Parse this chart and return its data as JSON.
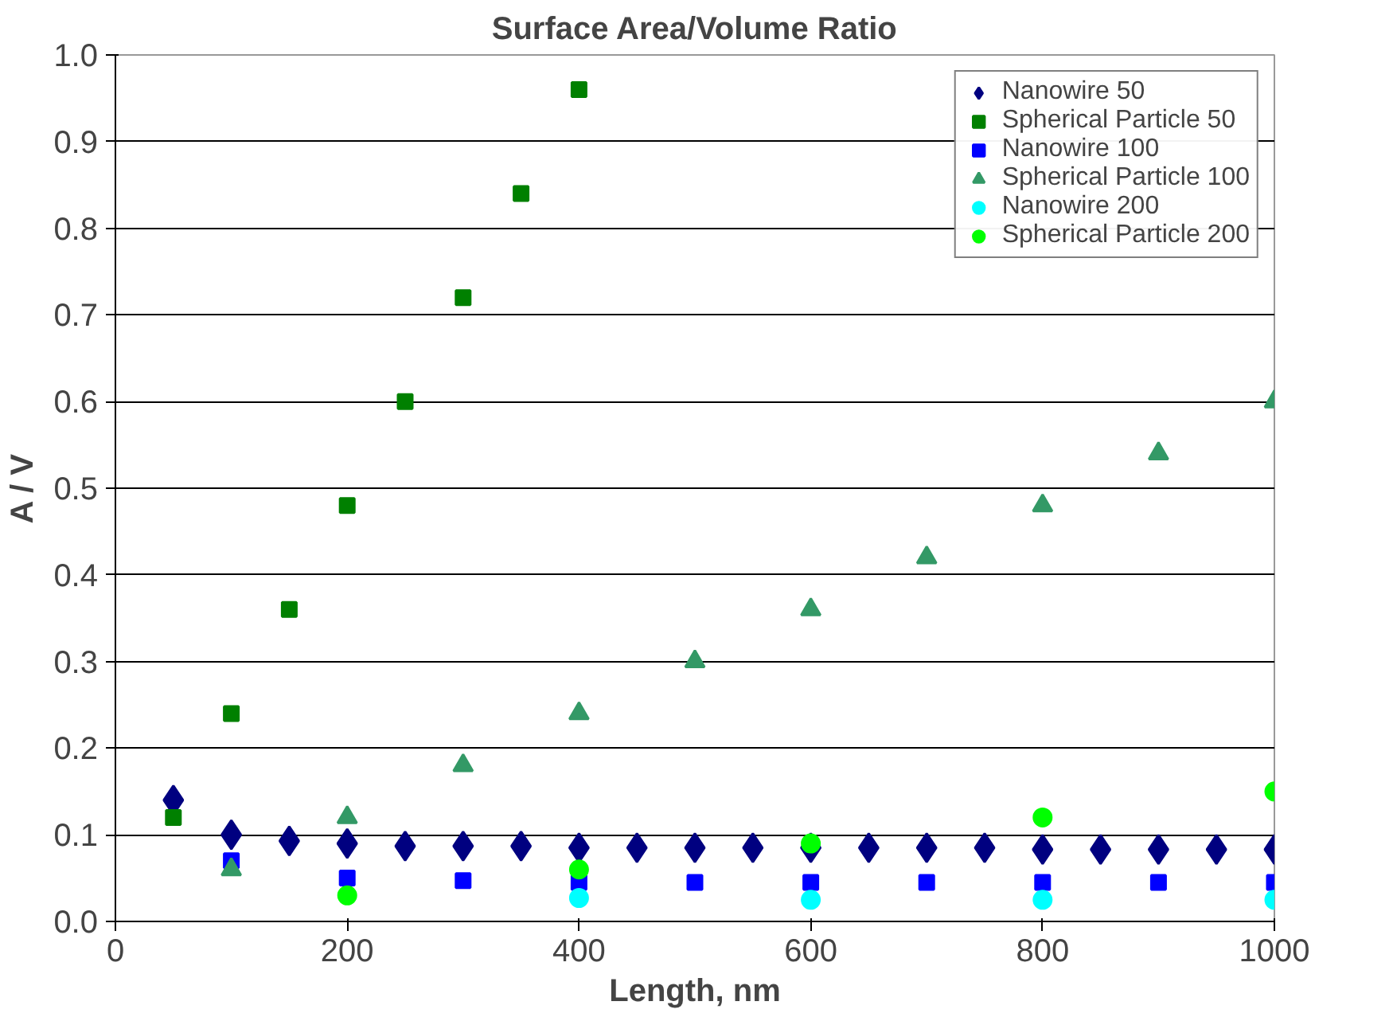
{
  "chart_data": {
    "type": "scatter",
    "title": "Surface Area/Volume Ratio",
    "xlabel": "Length, nm",
    "ylabel": "A / V",
    "xlim": [
      0,
      1000
    ],
    "xticks": [
      0,
      200,
      400,
      600,
      800,
      1000
    ],
    "ylim": [
      0,
      1.0
    ],
    "yticks": [
      {
        "value": 0,
        "label": "0.0"
      },
      0.1,
      0.2,
      0.3,
      0.4,
      0.5,
      0.6,
      0.7,
      0.8,
      0.9,
      {
        "value": 1.0,
        "label": "1.0"
      }
    ],
    "grid": "y",
    "legend": "top right",
    "series": [
      {
        "name": "Nanowire 50",
        "color": "#000080",
        "marker": "diamond",
        "x": [
          50,
          100,
          150,
          200,
          250,
          300,
          350,
          400,
          450,
          500,
          550,
          600,
          650,
          700,
          750,
          800,
          850,
          900,
          950,
          1000
        ],
        "values": [
          0.14,
          0.1,
          0.093,
          0.09,
          0.087,
          0.087,
          0.087,
          0.085,
          0.085,
          0.085,
          0.085,
          0.085,
          0.085,
          0.085,
          0.085,
          0.083,
          0.083,
          0.083,
          0.083,
          0.083
        ]
      },
      {
        "name": "Spherical Particle 50",
        "color": "#008000",
        "marker": "square",
        "x": [
          50,
          100,
          150,
          200,
          250,
          300,
          350,
          400
        ],
        "values": [
          0.12,
          0.24,
          0.36,
          0.48,
          0.6,
          0.72,
          0.84,
          0.96
        ]
      },
      {
        "name": "Nanowire 100",
        "color": "#0000ff",
        "marker": "square",
        "x": [
          100,
          200,
          300,
          400,
          500,
          600,
          700,
          800,
          900,
          1000
        ],
        "values": [
          0.07,
          0.05,
          0.047,
          0.045,
          0.045,
          0.045,
          0.045,
          0.045,
          0.045,
          0.045
        ]
      },
      {
        "name": "Spherical Particle 100",
        "color": "#339966",
        "marker": "triangle",
        "x": [
          100,
          200,
          300,
          400,
          500,
          600,
          700,
          800,
          900,
          1000
        ],
        "values": [
          0.06,
          0.12,
          0.18,
          0.24,
          0.3,
          0.36,
          0.42,
          0.48,
          0.54,
          0.6
        ]
      },
      {
        "name": "Nanowire 200",
        "color": "#00ffff",
        "marker": "circle",
        "x": [
          400,
          600,
          800,
          1000
        ],
        "values": [
          0.027,
          0.025,
          0.025,
          0.025
        ]
      },
      {
        "name": "Spherical Particle 200",
        "color": "#00ff00",
        "marker": "circle",
        "x": [
          200,
          400,
          600,
          800,
          1000
        ],
        "values": [
          0.03,
          0.06,
          0.09,
          0.12,
          0.15
        ]
      }
    ]
  }
}
